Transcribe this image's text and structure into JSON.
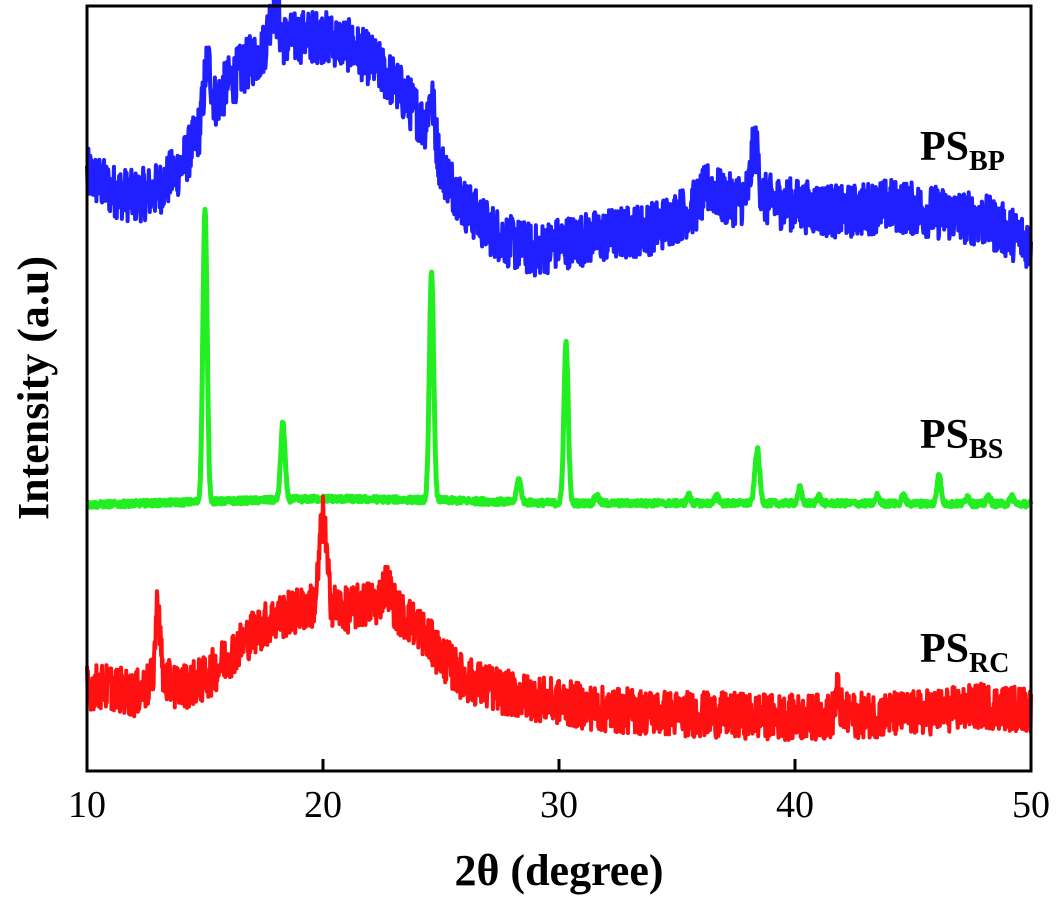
{
  "chart_data": {
    "type": "line",
    "title": "",
    "xlabel": "2θ (degree)",
    "ylabel": "Intensity (a.u)",
    "xlim": [
      10,
      50
    ],
    "ylim": [
      0,
      1
    ],
    "x_ticks": [
      10,
      20,
      30,
      40,
      50
    ],
    "x_tick_labels": [
      "10",
      "20",
      "30",
      "40",
      "50"
    ],
    "y_ticks_labeled": false,
    "grid": false,
    "legend": "inline labels at right",
    "series": [
      {
        "name": "PS_BP",
        "label_main": "PS",
        "label_sub": "BP",
        "color": "#1f1fff",
        "baseline": 0.71,
        "noise": 0.035,
        "profile": [
          {
            "x": 10,
            "y": 0.78
          },
          {
            "x": 11,
            "y": 0.76
          },
          {
            "x": 12,
            "y": 0.75
          },
          {
            "x": 13,
            "y": 0.76
          },
          {
            "x": 14,
            "y": 0.79
          },
          {
            "x": 15,
            "y": 0.85
          },
          {
            "x": 16,
            "y": 0.9
          },
          {
            "x": 17,
            "y": 0.93
          },
          {
            "x": 18,
            "y": 0.95
          },
          {
            "x": 19,
            "y": 0.96
          },
          {
            "x": 20,
            "y": 0.96
          },
          {
            "x": 21,
            "y": 0.95
          },
          {
            "x": 22,
            "y": 0.93
          },
          {
            "x": 23,
            "y": 0.9
          },
          {
            "x": 24,
            "y": 0.86
          },
          {
            "x": 25,
            "y": 0.79
          },
          {
            "x": 26,
            "y": 0.74
          },
          {
            "x": 27,
            "y": 0.71
          },
          {
            "x": 28,
            "y": 0.69
          },
          {
            "x": 29,
            "y": 0.68
          },
          {
            "x": 30,
            "y": 0.69
          },
          {
            "x": 32,
            "y": 0.7
          },
          {
            "x": 34,
            "y": 0.71
          },
          {
            "x": 36,
            "y": 0.74
          },
          {
            "x": 38,
            "y": 0.75
          },
          {
            "x": 40,
            "y": 0.74
          },
          {
            "x": 42,
            "y": 0.73
          },
          {
            "x": 44,
            "y": 0.74
          },
          {
            "x": 46,
            "y": 0.73
          },
          {
            "x": 48,
            "y": 0.72
          },
          {
            "x": 50,
            "y": 0.69
          }
        ],
        "peaks": [
          {
            "x": 15.1,
            "h": 0.07,
            "w": 0.15
          },
          {
            "x": 17.9,
            "h": 0.05,
            "w": 0.2
          },
          {
            "x": 24.6,
            "h": 0.06,
            "w": 0.15
          },
          {
            "x": 38.3,
            "h": 0.07,
            "w": 0.15
          },
          {
            "x": 36.4,
            "h": 0.02,
            "w": 0.3
          }
        ]
      },
      {
        "name": "PS_BS",
        "label_main": "PS",
        "label_sub": "BS",
        "color": "#22ee22",
        "baseline": 0.35,
        "noise": 0.004,
        "profile": [
          {
            "x": 10,
            "y": 0.348
          },
          {
            "x": 20,
            "y": 0.356
          },
          {
            "x": 25,
            "y": 0.354
          },
          {
            "x": 30,
            "y": 0.35
          },
          {
            "x": 40,
            "y": 0.35
          },
          {
            "x": 50,
            "y": 0.349
          }
        ],
        "peaks": [
          {
            "x": 15.0,
            "h": 0.38,
            "w": 0.09
          },
          {
            "x": 18.3,
            "h": 0.1,
            "w": 0.09
          },
          {
            "x": 24.6,
            "h": 0.3,
            "w": 0.09
          },
          {
            "x": 28.3,
            "h": 0.03,
            "w": 0.09
          },
          {
            "x": 30.3,
            "h": 0.21,
            "w": 0.09
          },
          {
            "x": 31.6,
            "h": 0.01,
            "w": 0.09
          },
          {
            "x": 35.5,
            "h": 0.01,
            "w": 0.08
          },
          {
            "x": 36.7,
            "h": 0.01,
            "w": 0.08
          },
          {
            "x": 38.4,
            "h": 0.07,
            "w": 0.1
          },
          {
            "x": 40.2,
            "h": 0.02,
            "w": 0.08
          },
          {
            "x": 41.0,
            "h": 0.01,
            "w": 0.08
          },
          {
            "x": 43.5,
            "h": 0.01,
            "w": 0.08
          },
          {
            "x": 44.6,
            "h": 0.01,
            "w": 0.08
          },
          {
            "x": 46.1,
            "h": 0.04,
            "w": 0.08
          },
          {
            "x": 47.3,
            "h": 0.01,
            "w": 0.08
          },
          {
            "x": 48.2,
            "h": 0.01,
            "w": 0.08
          },
          {
            "x": 49.2,
            "h": 0.01,
            "w": 0.08
          }
        ]
      },
      {
        "name": "PS_RC",
        "label_main": "PS",
        "label_sub": "RC",
        "color": "#ff1111",
        "baseline": 0.09,
        "noise": 0.03,
        "profile": [
          {
            "x": 10,
            "y": 0.11
          },
          {
            "x": 11,
            "y": 0.11
          },
          {
            "x": 12,
            "y": 0.1
          },
          {
            "x": 13,
            "y": 0.12
          },
          {
            "x": 14,
            "y": 0.11
          },
          {
            "x": 15,
            "y": 0.12
          },
          {
            "x": 16,
            "y": 0.15
          },
          {
            "x": 17,
            "y": 0.18
          },
          {
            "x": 18,
            "y": 0.2
          },
          {
            "x": 19,
            "y": 0.21
          },
          {
            "x": 20,
            "y": 0.22
          },
          {
            "x": 21,
            "y": 0.21
          },
          {
            "x": 22,
            "y": 0.22
          },
          {
            "x": 23,
            "y": 0.21
          },
          {
            "x": 24,
            "y": 0.19
          },
          {
            "x": 25,
            "y": 0.15
          },
          {
            "x": 26,
            "y": 0.12
          },
          {
            "x": 28,
            "y": 0.1
          },
          {
            "x": 30,
            "y": 0.09
          },
          {
            "x": 32,
            "y": 0.08
          },
          {
            "x": 35,
            "y": 0.075
          },
          {
            "x": 40,
            "y": 0.07
          },
          {
            "x": 45,
            "y": 0.075
          },
          {
            "x": 48,
            "y": 0.085
          },
          {
            "x": 50,
            "y": 0.08
          }
        ],
        "peaks": [
          {
            "x": 13.0,
            "h": 0.1,
            "w": 0.1
          },
          {
            "x": 20.0,
            "h": 0.11,
            "w": 0.15
          },
          {
            "x": 22.7,
            "h": 0.03,
            "w": 0.2
          },
          {
            "x": 41.8,
            "h": 0.03,
            "w": 0.1
          }
        ]
      }
    ]
  }
}
